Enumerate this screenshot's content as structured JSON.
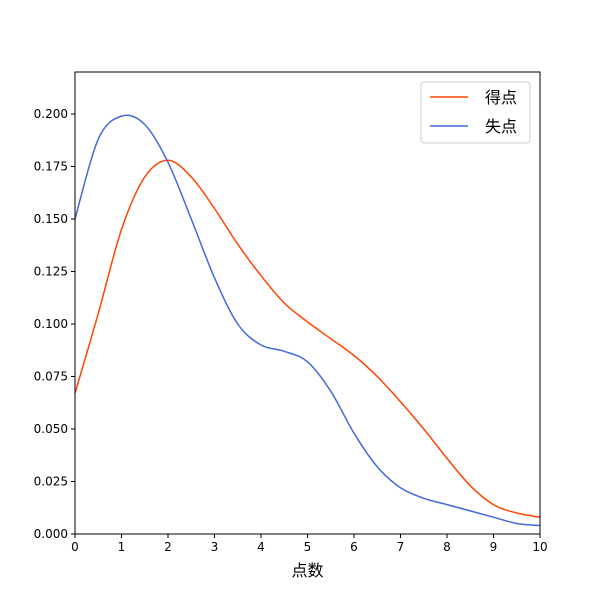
{
  "chart_data": {
    "type": "line",
    "title": "",
    "xlabel": "点数",
    "ylabel": "",
    "xlim": [
      0,
      10
    ],
    "ylim": [
      0,
      0.22
    ],
    "xticks": [
      0,
      1,
      2,
      3,
      4,
      5,
      6,
      7,
      8,
      9,
      10
    ],
    "yticks": [
      0.0,
      0.025,
      0.05,
      0.075,
      0.1,
      0.125,
      0.15,
      0.175,
      0.2
    ],
    "ytick_labels": [
      "0.000",
      "0.025",
      "0.050",
      "0.075",
      "0.100",
      "0.125",
      "0.150",
      "0.175",
      "0.200"
    ],
    "grid": false,
    "legend_position": "top-right",
    "series": [
      {
        "name": "得点",
        "color": "#ff4500",
        "x": [
          0,
          0.5,
          1,
          1.5,
          2,
          2.5,
          3,
          3.5,
          4,
          4.5,
          5,
          5.5,
          6,
          6.5,
          7,
          7.5,
          8,
          8.5,
          9,
          9.5,
          10
        ],
        "y": [
          0.067,
          0.105,
          0.145,
          0.17,
          0.178,
          0.17,
          0.155,
          0.138,
          0.123,
          0.11,
          0.101,
          0.093,
          0.085,
          0.075,
          0.063,
          0.05,
          0.036,
          0.023,
          0.014,
          0.01,
          0.008
        ]
      },
      {
        "name": "失点",
        "color": "#4169e1",
        "x": [
          0,
          0.5,
          1,
          1.5,
          2,
          2.5,
          3,
          3.5,
          4,
          4.5,
          5,
          5.5,
          6,
          6.5,
          7,
          7.5,
          8,
          8.5,
          9,
          9.5,
          10
        ],
        "y": [
          0.15,
          0.188,
          0.199,
          0.195,
          0.177,
          0.15,
          0.122,
          0.1,
          0.09,
          0.087,
          0.082,
          0.068,
          0.048,
          0.032,
          0.022,
          0.017,
          0.014,
          0.011,
          0.008,
          0.005,
          0.004
        ]
      }
    ]
  }
}
